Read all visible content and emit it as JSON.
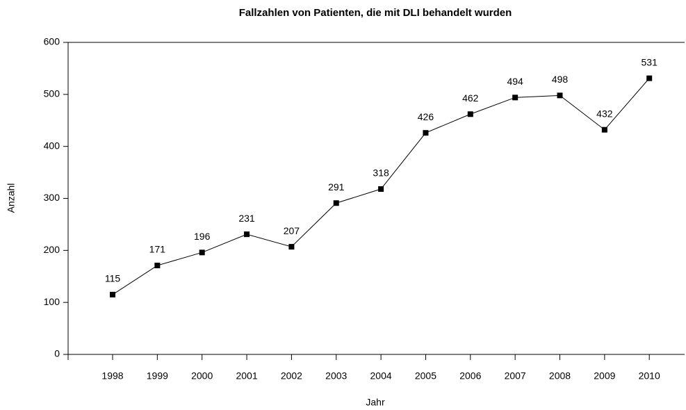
{
  "chart_data": {
    "type": "line",
    "title": "Fallzahlen von Patienten, die mit DLI behandelt wurden",
    "x_label": "Jahr",
    "y_label": "Anzahl",
    "categories": [
      "1998",
      "1999",
      "2000",
      "2001",
      "2002",
      "2003",
      "2004",
      "2005",
      "2006",
      "2007",
      "2008",
      "2009",
      "2010"
    ],
    "series": [
      {
        "color": "#000000",
        "values": [
          115,
          171,
          196,
          231,
          207,
          291,
          318,
          426,
          462,
          494,
          498,
          432,
          531
        ]
      }
    ],
    "ylim": [
      0,
      600
    ],
    "yticks": [
      0,
      100,
      200,
      300,
      400,
      500,
      600
    ],
    "grid": false
  }
}
